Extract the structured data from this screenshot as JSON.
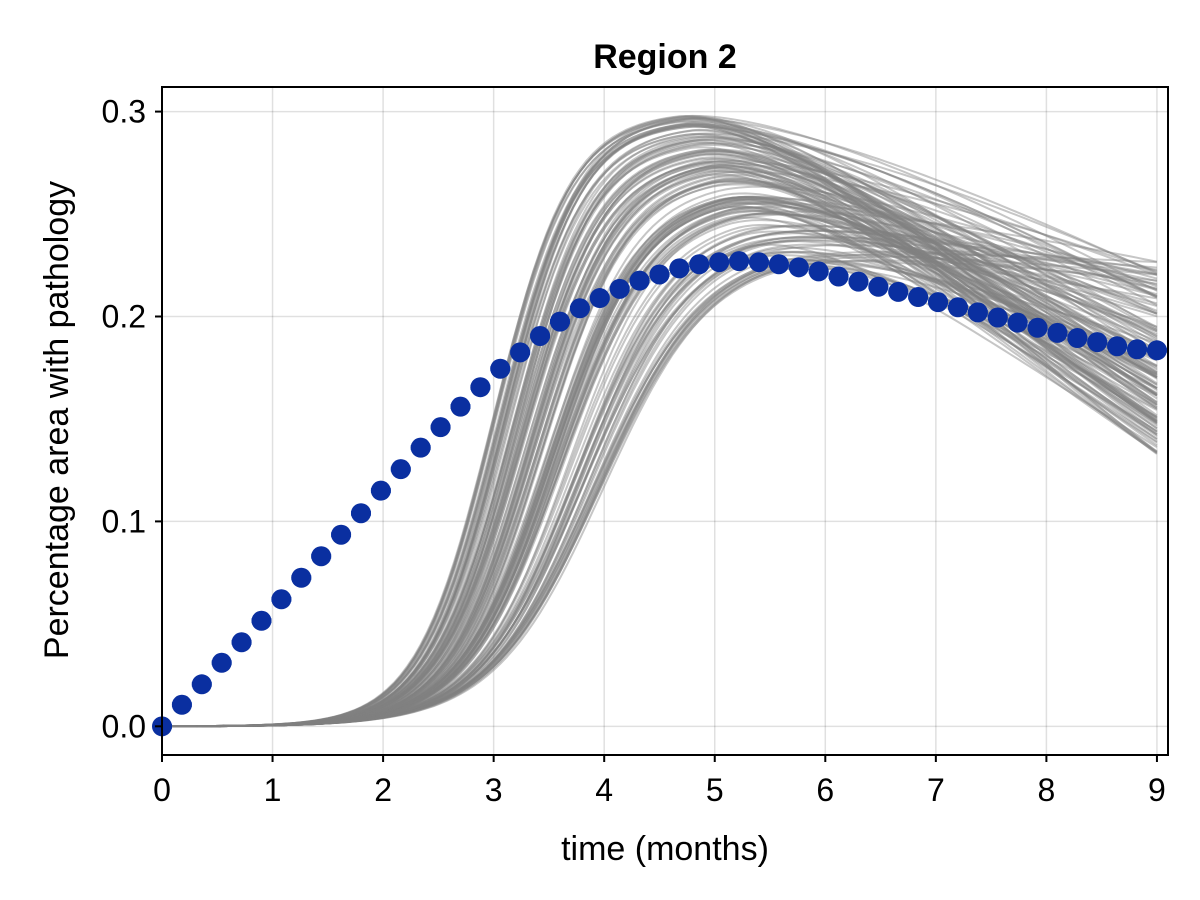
{
  "chart_data": {
    "type": "line",
    "title": "Region 2",
    "xlabel": "time (months)",
    "ylabel": "Percentage area with pathology",
    "xlim": [
      0,
      9.1
    ],
    "ylim": [
      -0.014,
      0.312
    ],
    "x_ticks": [
      0,
      1,
      2,
      3,
      4,
      5,
      6,
      7,
      8,
      9
    ],
    "y_ticks": [
      0.0,
      0.1,
      0.2,
      0.3
    ],
    "y_tick_labels": [
      "0.0",
      "0.1",
      "0.2",
      "0.3"
    ],
    "grid": true,
    "legend": "none",
    "colors": {
      "ensemble": "#808080",
      "observed_marker": "#0a2fa0",
      "observed_errorbar": "#1652c0"
    },
    "ensemble": {
      "count": 150,
      "t_range": [
        0,
        9
      ],
      "peak_value_range": [
        0.218,
        0.298
      ],
      "peak_time_range": [
        4.7,
        5.4
      ],
      "end_value_range": [
        0.13,
        0.221
      ]
    },
    "series": [
      {
        "x": [
          0.0,
          0.18,
          0.36,
          0.54,
          0.72,
          0.9,
          1.08,
          1.26,
          1.44,
          1.62,
          1.8,
          1.98,
          2.16,
          2.34,
          2.52,
          2.7,
          2.88,
          3.06,
          3.24,
          3.42,
          3.6,
          3.78,
          3.96,
          4.14,
          4.32,
          4.5,
          4.68,
          4.86,
          5.04,
          5.22,
          5.4,
          5.58,
          5.76,
          5.94,
          6.12,
          6.3,
          6.48,
          6.66,
          6.84,
          7.02,
          7.2,
          7.38,
          7.56,
          7.74,
          7.92,
          8.1,
          8.28,
          8.46,
          8.64,
          8.82,
          9.0
        ],
        "y": [
          0.0,
          0.0105,
          0.0205,
          0.031,
          0.041,
          0.0515,
          0.062,
          0.0725,
          0.083,
          0.0935,
          0.104,
          0.115,
          0.1255,
          0.136,
          0.146,
          0.156,
          0.1655,
          0.1745,
          0.1825,
          0.1905,
          0.1975,
          0.204,
          0.209,
          0.2135,
          0.2175,
          0.2205,
          0.2235,
          0.2255,
          0.2265,
          0.227,
          0.2265,
          0.2255,
          0.224,
          0.222,
          0.2195,
          0.217,
          0.2145,
          0.212,
          0.2095,
          0.207,
          0.2045,
          0.202,
          0.1995,
          0.197,
          0.1945,
          0.192,
          0.1895,
          0.1875,
          0.1855,
          0.184,
          0.1835
        ],
        "xerr": 0.09
      }
    ]
  }
}
